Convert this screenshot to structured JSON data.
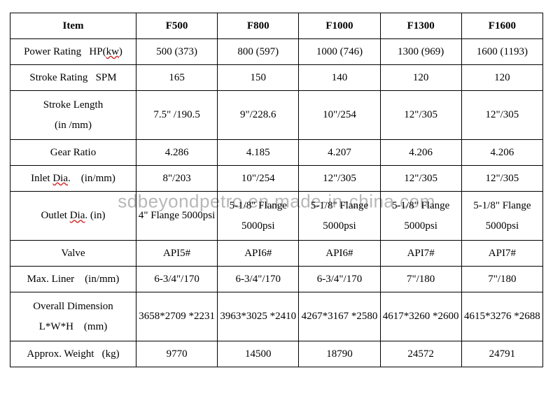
{
  "watermark": {
    "text": "sdbeyondpetro.en.made-in-china.com",
    "color": "#000000",
    "opacity": 0.28,
    "fontsize": 26
  },
  "table": {
    "border_color": "#000000",
    "background_color": "#ffffff",
    "text_color": "#000000",
    "font_family": "Times New Roman",
    "header_fontsize": 15,
    "cell_fontsize": 15,
    "spellcheck_underline_color": "#d03030",
    "columns": [
      "Item",
      "F500",
      "F800",
      "F1000",
      "F1300",
      "F1600"
    ],
    "rows": [
      {
        "label_html": "Power Rating&nbsp;&nbsp;&nbsp;HP(<span class='spell'>kw</span>)",
        "values": [
          "500 (373)",
          "800 (597)",
          "1000 (746)",
          "1300 (969)",
          "1600 (1193)"
        ]
      },
      {
        "label_html": "Stroke Rating&nbsp;&nbsp;&nbsp;SPM",
        "values": [
          "165",
          "150",
          "140",
          "120",
          "120"
        ]
      },
      {
        "label_html": "Stroke Length<br>(in /mm)",
        "values": [
          "7.5\" /190.5",
          "9\"/228.6",
          "10\"/254",
          "12\"/305",
          "12\"/305"
        ],
        "two_line": true
      },
      {
        "label_html": "Gear Ratio",
        "values": [
          "4.286",
          "4.185",
          "4.207",
          "4.206",
          "4.206"
        ]
      },
      {
        "label_html": "Inlet <span class='spell'>Dia</span>.&nbsp;&nbsp;&nbsp;&nbsp;(in/mm)",
        "values": [
          "8\"/203",
          "10\"/254",
          "12\"/305",
          "12\"/305",
          "12\"/305"
        ]
      },
      {
        "label_html": "Outlet <span class='spell'>Dia</span>. (in)",
        "values": [
          "4\" Flange 5000psi",
          "5-1/8\" Flange 5000psi",
          "5-1/8\" Flange 5000psi",
          "5-1/8\" Flange 5000psi",
          "5-1/8\" Flange 5000psi"
        ],
        "two_line": true
      },
      {
        "label_html": "Valve",
        "values": [
          "API5#",
          "API6#",
          "API6#",
          "API7#",
          "API7#"
        ]
      },
      {
        "label_html": "Max. Liner&nbsp;&nbsp;&nbsp;&nbsp;(in/mm)",
        "values": [
          "6-3/4\"/170",
          "6-3/4\"/170",
          "6-3/4\"/170",
          "7\"/180",
          "7\"/180"
        ]
      },
      {
        "label_html": "Overall Dimension<br>L*W*H&nbsp;&nbsp;&nbsp;&nbsp;(mm)",
        "values": [
          "3658*2709 *2231",
          "3963*3025 *2410",
          "4267*3167 *2580",
          "4617*3260 *2600",
          "4615*3276 *2688"
        ],
        "two_line": true
      },
      {
        "label_html": "Approx. Weight&nbsp;&nbsp;&nbsp;(kg)",
        "values": [
          "9770",
          "14500",
          "18790",
          "24572",
          "24791"
        ]
      }
    ]
  }
}
